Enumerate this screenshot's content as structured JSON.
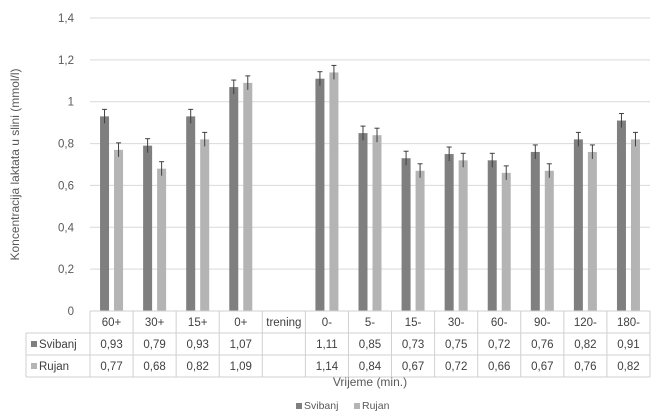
{
  "chart_data": {
    "type": "bar",
    "xlabel": "Vrijeme (min.)",
    "ylabel": "Koncentracija laktata u slini (mmol/l)",
    "ylim": [
      0,
      1.4
    ],
    "yticks": [
      "0",
      "0,2",
      "0,4",
      "0,6",
      "0,8",
      "1",
      "1,2",
      "1,4"
    ],
    "categories": [
      "60+",
      "30+",
      "15+",
      "0+",
      "trening",
      "0-",
      "5-",
      "15-",
      "30-",
      "60-",
      "90-",
      "120-",
      "180-"
    ],
    "series": [
      {
        "name": "Svibanj",
        "color": "#7f7f7f",
        "values": [
          0.93,
          0.79,
          0.93,
          1.07,
          null,
          1.11,
          0.85,
          0.73,
          0.75,
          0.72,
          0.76,
          0.82,
          0.91
        ],
        "labels": [
          "0,93",
          "0,79",
          "0,93",
          "1,07",
          "",
          "1,11",
          "0,85",
          "0,73",
          "0,75",
          "0,72",
          "0,76",
          "0,82",
          "0,91"
        ]
      },
      {
        "name": "Rujan",
        "color": "#b4b4b4",
        "values": [
          0.77,
          0.68,
          0.82,
          1.09,
          null,
          1.14,
          0.84,
          0.67,
          0.72,
          0.66,
          0.67,
          0.76,
          0.82
        ],
        "labels": [
          "0,77",
          "0,68",
          "0,82",
          "1,09",
          "",
          "1,14",
          "0,84",
          "0,67",
          "0,72",
          "0,66",
          "0,67",
          "0,76",
          "0,82"
        ]
      }
    ],
    "error_bars": true,
    "grid": true,
    "legend": "bottom",
    "data_table": true
  }
}
